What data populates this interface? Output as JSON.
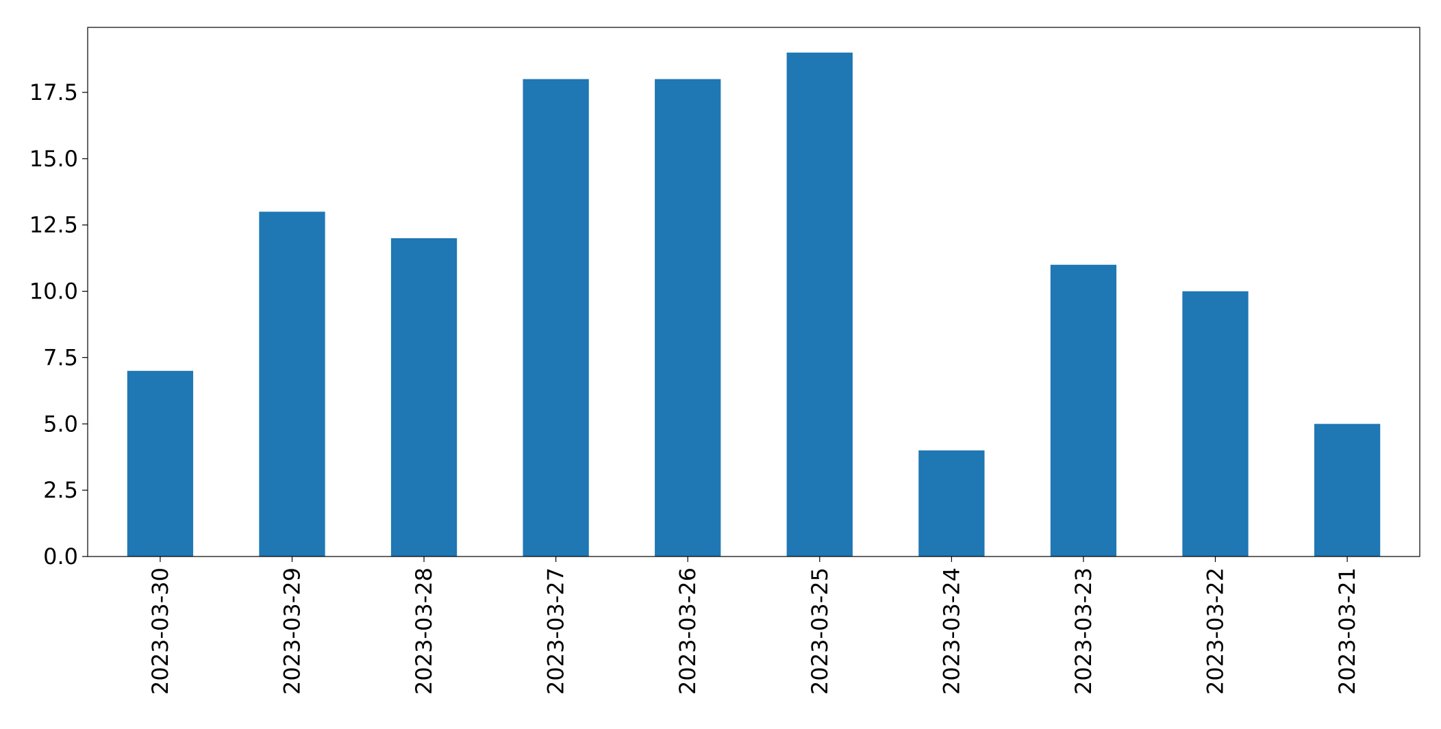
{
  "chart_data": {
    "type": "bar",
    "categories": [
      "2023-03-30",
      "2023-03-29",
      "2023-03-28",
      "2023-03-27",
      "2023-03-26",
      "2023-03-25",
      "2023-03-24",
      "2023-03-23",
      "2023-03-22",
      "2023-03-21"
    ],
    "values": [
      7,
      13,
      12,
      18,
      18,
      19,
      4,
      11,
      10,
      5
    ],
    "title": "",
    "xlabel": "",
    "ylabel": "",
    "ylim": [
      0,
      19.95
    ],
    "yticks": [
      0.0,
      2.5,
      5.0,
      7.5,
      10.0,
      12.5,
      15.0,
      17.5
    ],
    "ytick_labels": [
      "0.0",
      "2.5",
      "5.0",
      "7.5",
      "10.0",
      "12.5",
      "15.0",
      "17.5"
    ],
    "bar_color": "#1f77b4",
    "grid": false,
    "legend": "none"
  }
}
